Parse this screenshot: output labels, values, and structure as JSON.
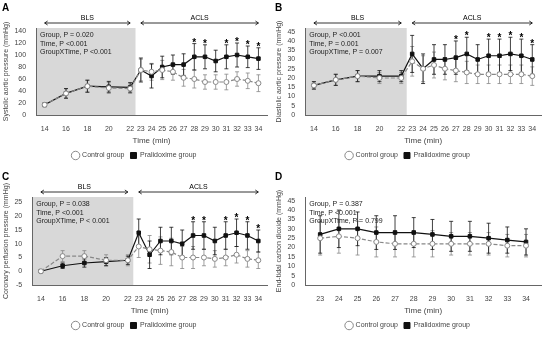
{
  "chart_data": [
    {
      "type": "line",
      "title": "A",
      "xlabel": "Time (min)",
      "ylabel": "Systolic aortic pressure (mmHg)",
      "x": [
        14,
        16,
        18,
        20,
        22,
        23,
        24,
        25,
        26,
        27,
        28,
        29,
        30,
        31,
        32,
        33,
        34
      ],
      "xlim": [
        13.2,
        34.8
      ],
      "xticks": [
        14,
        16,
        18,
        20,
        22,
        23,
        24,
        25,
        26,
        27,
        28,
        29,
        30,
        31,
        32,
        33,
        34
      ],
      "ylim": [
        0,
        145
      ],
      "yticks": [
        0,
        20,
        40,
        60,
        80,
        100,
        120,
        140
      ],
      "grid": false,
      "legend": "bottom",
      "shade": {
        "x": [
          13.0,
          22.5
        ],
        "color": "#d8d8d8"
      },
      "series": [
        {
          "name": "Control group",
          "color": "#888888",
          "marker": "open_circle",
          "line_style": "dashed",
          "values": [
            17,
            36,
            48,
            45,
            44,
            75,
            72,
            75,
            72,
            62,
            60,
            55,
            55,
            55,
            60,
            57,
            53
          ],
          "errors": [
            3,
            8,
            10,
            9,
            8,
            18,
            14,
            16,
            14,
            14,
            15,
            12,
            12,
            13,
            12,
            13,
            14
          ]
        },
        {
          "name": "Pralidoxime group",
          "color": "#111111",
          "marker": "square",
          "line_style": "solid",
          "values": [
            17,
            36,
            48,
            47,
            46,
            75,
            65,
            80,
            84,
            84,
            97,
            97,
            90,
            97,
            100,
            97,
            94
          ],
          "errors": [
            3,
            8,
            10,
            9,
            8,
            20,
            20,
            18,
            16,
            18,
            22,
            20,
            18,
            20,
            20,
            18,
            18
          ]
        }
      ],
      "annotations": [
        {
          "text": "BLS",
          "x": [
            14,
            22
          ]
        },
        {
          "text": "ACLS",
          "x": [
            23,
            34
          ]
        },
        {
          "text": "*",
          "x": 28
        },
        {
          "text": "*",
          "x": 29
        },
        {
          "text": "*",
          "x": 31
        },
        {
          "text": "*",
          "x": 32
        },
        {
          "text": "*",
          "x": 33
        },
        {
          "text": "*",
          "x": 34
        },
        {
          "text": "Group, P = 0.020\nTime, P <0.001\nGroupXTime, P <0.001"
        }
      ]
    },
    {
      "type": "line",
      "title": "B",
      "xlabel": "Time (min)",
      "ylabel": "Diastolic aortic pressure (mmHg)",
      "x": [
        14,
        16,
        18,
        20,
        22,
        23,
        24,
        25,
        26,
        27,
        28,
        29,
        30,
        31,
        32,
        33,
        34
      ],
      "xlim": [
        13.2,
        34.8
      ],
      "xticks": [
        14,
        16,
        18,
        20,
        22,
        23,
        24,
        25,
        26,
        27,
        28,
        29,
        30,
        31,
        32,
        33,
        34
      ],
      "ylim": [
        0,
        47
      ],
      "yticks": [
        0,
        5,
        10,
        15,
        20,
        25,
        30,
        35,
        40,
        45
      ],
      "grid": false,
      "legend": "bottom",
      "shade": {
        "x": [
          13.0,
          22.5
        ],
        "color": "#d8d8d8"
      },
      "series": [
        {
          "name": "Control group",
          "color": "#888888",
          "marker": "open_circle",
          "line_style": "dashed",
          "values": [
            16,
            19,
            21,
            20,
            20,
            29,
            25,
            27,
            25,
            24,
            23,
            22,
            22,
            22,
            22,
            22,
            21
          ],
          "errors": [
            2,
            3,
            3,
            3,
            3,
            8,
            7,
            7,
            6,
            6,
            6,
            5,
            5,
            5,
            5,
            5,
            5
          ]
        },
        {
          "name": "Pralidoxime group",
          "color": "#111111",
          "marker": "square",
          "line_style": "solid",
          "values": [
            16,
            19,
            21,
            21,
            21,
            33,
            25,
            30,
            30,
            31,
            33,
            30,
            32,
            32,
            33,
            32,
            30
          ],
          "errors": [
            2,
            3,
            3,
            3,
            3,
            10,
            8,
            8,
            8,
            9,
            9,
            8,
            9,
            9,
            9,
            9,
            8
          ]
        }
      ],
      "annotations": [
        {
          "text": "BLS",
          "x": [
            14,
            22
          ]
        },
        {
          "text": "ACLS",
          "x": [
            23,
            34
          ]
        },
        {
          "text": "*",
          "x": 27
        },
        {
          "text": "*",
          "x": 28
        },
        {
          "text": "*",
          "x": 30
        },
        {
          "text": "*",
          "x": 31
        },
        {
          "text": "*",
          "x": 32
        },
        {
          "text": "*",
          "x": 33
        },
        {
          "text": "*",
          "x": 34
        },
        {
          "text": "Group, P <0.001\nTime, P = 0.001\nGroupXTime, P = 0.007"
        }
      ]
    },
    {
      "type": "line",
      "title": "C",
      "xlabel": "Time (min)",
      "ylabel": "Coronary perfusion pressure (mmHg)",
      "x": [
        14,
        16,
        18,
        20,
        22,
        23,
        24,
        25,
        26,
        27,
        28,
        29,
        30,
        31,
        32,
        33,
        34
      ],
      "xlim": [
        13.2,
        34.8
      ],
      "xticks": [
        14,
        16,
        18,
        20,
        22,
        23,
        24,
        25,
        26,
        27,
        28,
        29,
        30,
        31,
        32,
        33,
        34
      ],
      "ylim": [
        -5,
        27
      ],
      "yticks": [
        -5,
        0,
        5,
        10,
        15,
        20,
        25
      ],
      "grid": false,
      "legend": "bottom",
      "shade": {
        "x": [
          13.0,
          22.5
        ],
        "color": "#d8d8d8"
      },
      "series": [
        {
          "name": "Control group",
          "color": "#888888",
          "marker": "open_circle",
          "line_style": "dashed",
          "values": [
            0,
            5.5,
            5.5,
            4,
            4,
            9,
            8,
            7.5,
            7,
            5,
            5,
            5,
            4.5,
            5,
            6,
            4.5,
            4
          ],
          "errors": [
            0.5,
            2,
            2,
            2,
            2,
            4,
            5,
            5,
            5,
            4,
            4,
            3,
            3,
            3,
            3,
            3,
            3
          ]
        },
        {
          "name": "Pralidoxime group",
          "color": "#111111",
          "marker": "square",
          "line_style": "solid",
          "values": [
            0,
            2,
            3,
            3.5,
            4,
            14,
            6,
            11,
            11,
            10,
            13,
            13,
            11,
            13,
            14,
            13,
            11
          ],
          "errors": [
            0.5,
            1,
            1.5,
            1.5,
            1.5,
            5,
            5,
            5,
            5,
            5,
            5,
            5,
            5,
            5,
            5,
            5,
            4
          ]
        }
      ],
      "annotations": [
        {
          "text": "BLS",
          "x": [
            14,
            22
          ]
        },
        {
          "text": "ACLS",
          "x": [
            23,
            34
          ]
        },
        {
          "text": "*",
          "x": 28
        },
        {
          "text": "*",
          "x": 29
        },
        {
          "text": "*",
          "x": 31
        },
        {
          "text": "*",
          "x": 32
        },
        {
          "text": "*",
          "x": 33
        },
        {
          "text": "*",
          "x": 34
        },
        {
          "text": "Group, P = 0.038\nTime, P <0.001\nGroupXTime, P < 0.001"
        }
      ]
    },
    {
      "type": "line",
      "title": "D",
      "xlabel": "Time (min)",
      "ylabel": "End-tidal carbon dioxide (mmHg)",
      "x": [
        23,
        24,
        25,
        26,
        27,
        28,
        29,
        30,
        31,
        32,
        33,
        34
      ],
      "xlim": [
        22.2,
        34.8
      ],
      "xticks": [
        23,
        24,
        25,
        26,
        27,
        28,
        29,
        30,
        31,
        32,
        33,
        34
      ],
      "ylim": [
        0,
        47
      ],
      "yticks": [
        0,
        5,
        10,
        15,
        20,
        25,
        30,
        35,
        40,
        45
      ],
      "grid": false,
      "legend": "bottom",
      "series": [
        {
          "name": "Control group",
          "color": "#888888",
          "marker": "open_circle",
          "line_style": "dashed",
          "values": [
            25,
            26,
            25,
            23,
            22,
            22,
            22,
            22,
            22,
            22,
            21,
            21
          ],
          "errors": [
            9,
            9,
            9,
            8,
            7,
            7,
            7,
            6,
            6,
            6,
            6,
            6
          ]
        },
        {
          "name": "Pralidoxime group",
          "color": "#111111",
          "marker": "square",
          "line_style": "solid",
          "values": [
            27,
            30,
            30,
            28,
            28,
            28,
            27,
            26,
            26,
            25,
            24,
            23
          ],
          "errors": [
            10,
            10,
            9,
            9,
            9,
            8,
            8,
            8,
            8,
            8,
            7,
            7
          ]
        }
      ],
      "annotations": [
        {
          "text": "Group, P = 0.387\nTime, P <0.001\nGroupXTime, P = 0.799"
        }
      ]
    }
  ]
}
